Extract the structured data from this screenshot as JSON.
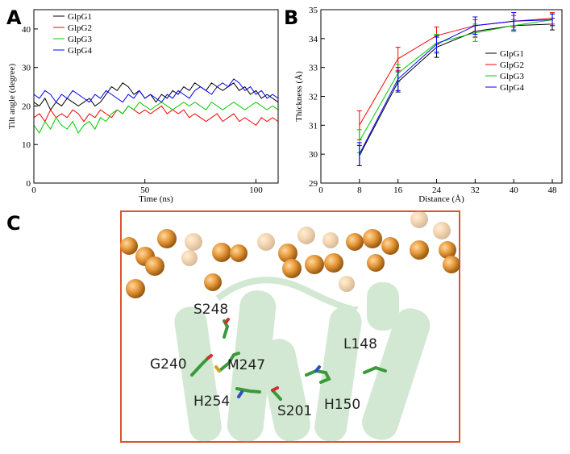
{
  "chart_data": [
    {
      "type": "line",
      "panel_label": "A",
      "xlabel": "Time (ns)",
      "ylabel": "Tilt angle (degree)",
      "xlim": [
        0,
        110
      ],
      "xticks": [
        0,
        50,
        100
      ],
      "ylim": [
        0,
        45
      ],
      "yticks": [
        0,
        10,
        20,
        30,
        40
      ],
      "legend": "upper left",
      "x": [
        0,
        2.5,
        5,
        7.5,
        10,
        12.5,
        15,
        17.5,
        20,
        22.5,
        25,
        27.5,
        30,
        32.5,
        35,
        37.5,
        40,
        42.5,
        45,
        47.5,
        50,
        52.5,
        55,
        57.5,
        60,
        62.5,
        65,
        67.5,
        70,
        72.5,
        75,
        77.5,
        80,
        82.5,
        85,
        87.5,
        90,
        92.5,
        95,
        97.5,
        100,
        102.5,
        105,
        107.5,
        110
      ],
      "series": [
        {
          "name": "GlpG1",
          "color": "#000000",
          "values": [
            21,
            20,
            22,
            19,
            21,
            20,
            22,
            21,
            20,
            21,
            22,
            20,
            21,
            23,
            25,
            24,
            26,
            25,
            23,
            24,
            22,
            23,
            21,
            23,
            22,
            24,
            23,
            25,
            24,
            26,
            25,
            24,
            26,
            25,
            24,
            25,
            26,
            24,
            25,
            23,
            24,
            22,
            23,
            22,
            21
          ]
        },
        {
          "name": "GlpG2",
          "color": "#ff0000",
          "values": [
            17,
            18,
            16,
            19,
            17,
            18,
            17,
            19,
            18,
            16,
            18,
            17,
            19,
            18,
            17,
            19,
            18,
            20,
            19,
            18,
            19,
            18,
            19,
            20,
            18,
            19,
            18,
            19,
            17,
            18,
            17,
            16,
            17,
            18,
            16,
            17,
            18,
            16,
            17,
            16,
            15,
            17,
            16,
            17,
            16
          ]
        },
        {
          "name": "GlpG3",
          "color": "#00cc00",
          "values": [
            15,
            13,
            16,
            14,
            17,
            15,
            14,
            16,
            13,
            15,
            16,
            14,
            17,
            16,
            18,
            19,
            18,
            20,
            19,
            21,
            20,
            19,
            20,
            21,
            20,
            19,
            20,
            21,
            20,
            21,
            20,
            19,
            21,
            20,
            19,
            20,
            21,
            20,
            19,
            20,
            21,
            20,
            19,
            20,
            19
          ]
        },
        {
          "name": "GlpG4",
          "color": "#0000ff",
          "values": [
            23,
            22,
            24,
            23,
            21,
            23,
            22,
            24,
            23,
            22,
            21,
            23,
            22,
            24,
            23,
            22,
            21,
            23,
            22,
            24,
            22,
            23,
            22,
            21,
            23,
            22,
            24,
            23,
            22,
            24,
            25,
            24,
            23,
            25,
            26,
            25,
            27,
            26,
            24,
            25,
            23,
            24,
            22,
            23,
            22
          ]
        }
      ]
    },
    {
      "type": "line",
      "panel_label": "B",
      "xlabel": "Distance (Å)",
      "ylabel": "Thickness (Å)",
      "xlim": [
        0,
        50
      ],
      "xticks": [
        0,
        8,
        16,
        24,
        32,
        40,
        48
      ],
      "ylim": [
        29,
        35
      ],
      "yticks": [
        29,
        30,
        31,
        32,
        33,
        34,
        35
      ],
      "legend": "center right",
      "x": [
        8,
        16,
        24,
        32,
        40,
        48
      ],
      "series": [
        {
          "name": "GlpG1",
          "color": "#000000",
          "values": [
            29.95,
            32.5,
            33.7,
            34.25,
            34.45,
            34.5
          ],
          "errors": [
            0.35,
            0.35,
            0.35,
            0.2,
            0.2,
            0.2
          ]
        },
        {
          "name": "GlpG2",
          "color": "#ff0000",
          "values": [
            31.0,
            33.3,
            34.1,
            34.45,
            34.6,
            34.7
          ],
          "errors": [
            0.5,
            0.4,
            0.3,
            0.2,
            0.2,
            0.2
          ]
        },
        {
          "name": "GlpG3",
          "color": "#00cc00",
          "values": [
            30.45,
            32.8,
            33.85,
            34.2,
            34.45,
            34.65
          ],
          "errors": [
            0.4,
            0.3,
            0.3,
            0.3,
            0.2,
            0.2
          ]
        },
        {
          "name": "GlpG4",
          "color": "#0000ff",
          "values": [
            30.0,
            32.6,
            33.8,
            34.45,
            34.6,
            34.65
          ],
          "errors": [
            0.4,
            0.4,
            0.3,
            0.3,
            0.3,
            0.2
          ]
        }
      ]
    }
  ],
  "image": {
    "panel_label": "C",
    "labels": [
      "S248",
      "G240",
      "M247",
      "L148",
      "H254",
      "S201",
      "H150"
    ]
  }
}
